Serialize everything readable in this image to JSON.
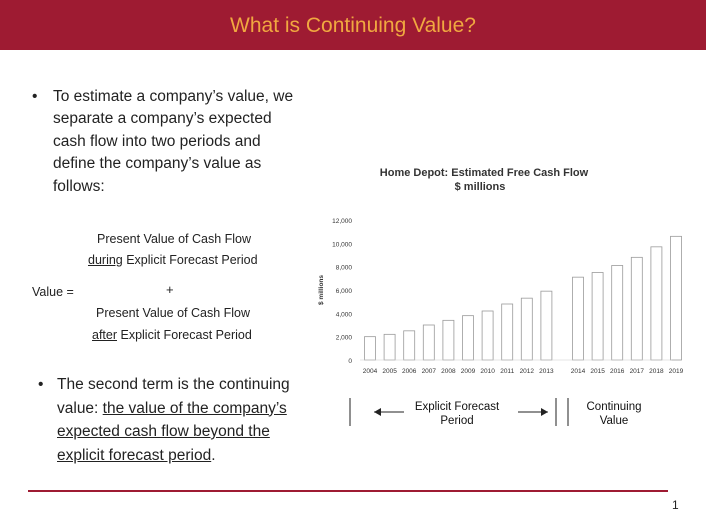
{
  "slide": {
    "title": "What is Continuing Value?",
    "page_number": "1",
    "brand_color": "#9e1b32",
    "title_color": "#f0a840"
  },
  "bullet1": {
    "marker": "•",
    "text": "To estimate a company’s value, we separate a company’s expected cash flow into two periods and define the company’s value as follows:"
  },
  "formula": {
    "term1_line1": "Present Value of Cash Flow",
    "term1_underlined": "during",
    "term1_line2_rest": " Explicit Forecast Period",
    "value_label": "Value =",
    "plus": "+",
    "term2_line1": "Present Value of Cash Flow",
    "term2_underlined": "after",
    "term2_line2_rest": " Explicit Forecast Period"
  },
  "bullet2": {
    "marker": "•",
    "text_plain": "The second term is the continuing value: ",
    "text_underlined": "the value of the company’s expected cash flow beyond the explicit forecast period",
    "text_end": "."
  },
  "chart_data": {
    "type": "bar",
    "title": "Home Depot: Estimated Free Cash Flow",
    "subtitle": "$ millions",
    "ylabel": "$ millions",
    "ylim": [
      0,
      12000
    ],
    "yticks": [
      "0",
      "2,000",
      "4,000",
      "6,000",
      "8,000",
      "10,000",
      "12,000"
    ],
    "categories": [
      "2004",
      "2005",
      "2006",
      "2007",
      "2008",
      "2009",
      "2010",
      "2011",
      "2012",
      "2013",
      "2014",
      "2015",
      "2016",
      "2017",
      "2018",
      "2019"
    ],
    "values": [
      2000,
      2200,
      2500,
      3000,
      3400,
      3800,
      4200,
      4800,
      5300,
      5900,
      7100,
      7500,
      8100,
      8800,
      9700,
      10600
    ],
    "grid": false
  },
  "segments": {
    "explicit_label": "Explicit Forecast Period",
    "continuing_label": "Continuing Value"
  }
}
